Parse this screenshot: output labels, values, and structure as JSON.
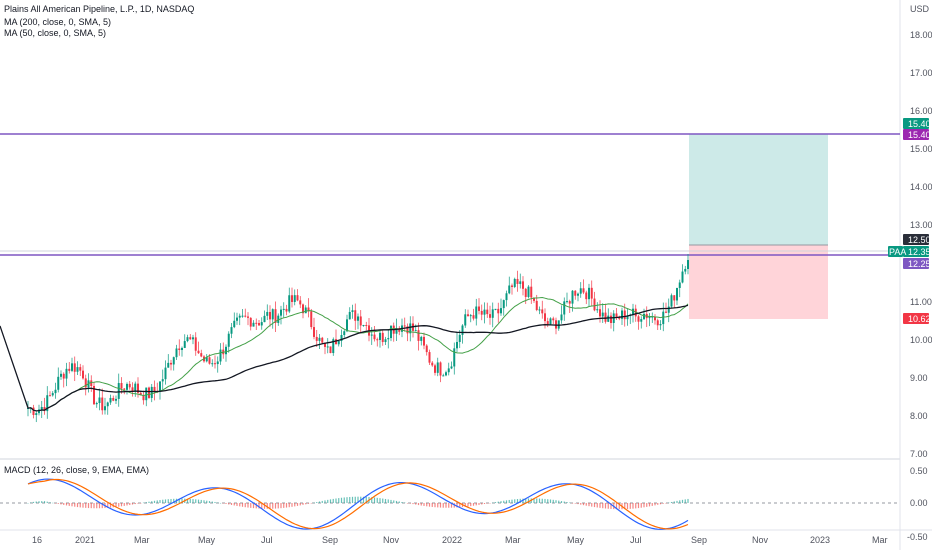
{
  "header": {
    "title": "Plains All American Pipeline, L.P., 1D, NASDAQ",
    "indicators": [
      "MA (200, close, 0, SMA, 5)",
      "MA (50, close, 0, SMA, 5)"
    ],
    "macd_label": "MACD (12, 26, close, 9, EMA, EMA)",
    "currency": "USD"
  },
  "price_axis": {
    "ticks": [
      "18.00",
      "17.00",
      "16.00",
      "15.00",
      "14.00",
      "13.00",
      "11.00",
      "10.00",
      "9.00",
      "8.00",
      "7.00"
    ],
    "tags": [
      {
        "label": "15.40",
        "color": "#089981"
      },
      {
        "label": "15.40",
        "color": "#9c27b0"
      },
      {
        "label": "12.50",
        "color": "#2a2e39"
      },
      {
        "label": "12.35",
        "color": "#089981"
      },
      {
        "label": "12.25",
        "color": "#7e57c2"
      },
      {
        "label": "10.62",
        "color": "#f23645"
      }
    ],
    "ticker": "PAA"
  },
  "macd_axis": {
    "ticks": [
      "0.50",
      "0.00",
      "-0.50"
    ]
  },
  "time_axis": {
    "ticks": [
      "16",
      "2021",
      "Mar",
      "May",
      "Jul",
      "Sep",
      "Nov",
      "2022",
      "Mar",
      "May",
      "Jul",
      "Sep",
      "Nov",
      "2023",
      "Mar"
    ]
  },
  "chart_data": {
    "type": "candlestick",
    "title": "Plains All American Pipeline, L.P., 1D, NASDAQ",
    "ylim": [
      6.9,
      18.7
    ],
    "horizontal_levels": [
      15.4,
      12.25
    ],
    "position_box": {
      "entry": 12.5,
      "target": 15.4,
      "stop": 10.62
    },
    "price_path": [
      {
        "x": "16",
        "close": 7.0
      },
      {
        "x": "2021",
        "close": 9.2
      },
      {
        "x": "Mar",
        "close": 8.6
      },
      {
        "x": "May",
        "close": 9.4
      },
      {
        "x": "Jul",
        "close": 11.3
      },
      {
        "x": "Sep",
        "close": 9.5
      },
      {
        "x": "Nov",
        "close": 10.9
      },
      {
        "x": "2022",
        "close": 9.1
      },
      {
        "x": "Mar",
        "close": 11.3
      },
      {
        "x": "May",
        "close": 11.0
      },
      {
        "x": "Jul",
        "close": 9.9
      },
      {
        "x": "Sep",
        "close": 12.35
      }
    ],
    "macd_ylim": [
      -0.75,
      0.6
    ]
  }
}
